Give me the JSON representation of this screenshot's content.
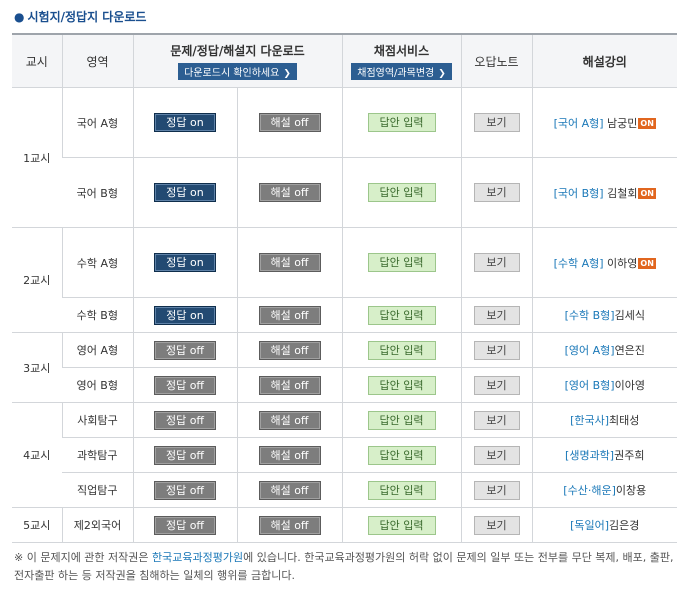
{
  "title": "시험지/정답지 다운로드",
  "headers": {
    "period": "교시",
    "area": "영역",
    "download": "문제/정답/해설지 다운로드",
    "download_sub": "다운로드시 확인하세요",
    "scoring": "채점서비스",
    "scoring_sub": "채점영역/과목변경",
    "wrong_note": "오답노트",
    "lecture": "해설강의"
  },
  "periods": [
    "1교시",
    "2교시",
    "3교시",
    "4교시",
    "5교시"
  ],
  "rows": [
    {
      "area": "국어 A형",
      "answer": "정답 on",
      "explain": "해설 off",
      "input": "답안 입력",
      "view": "보기",
      "lec_link": "[국어 A형]",
      "lec_name": " 남궁민",
      "badge": "ON"
    },
    {
      "area": "국어 B형",
      "answer": "정답 on",
      "explain": "해설 off",
      "input": "답안 입력",
      "view": "보기",
      "lec_link": "[국어 B형]",
      "lec_name": " 김철회",
      "badge": "ON"
    },
    {
      "area": "수학 A형",
      "answer": "정답 on",
      "explain": "해설 off",
      "input": "답안 입력",
      "view": "보기",
      "lec_link": "[수학 A형]",
      "lec_name": " 이하영",
      "badge": "ON"
    },
    {
      "area": "수학 B형",
      "answer": "정답 on",
      "explain": "해설 off",
      "input": "답안 입력",
      "view": "보기",
      "lec_link": "[수학 B형]",
      "lec_name": "김세식"
    },
    {
      "area": "영어 A형",
      "answer": "정답 off",
      "explain": "해설 off",
      "input": "답안 입력",
      "view": "보기",
      "lec_link": "[영어 A형]",
      "lec_name": "연은진"
    },
    {
      "area": "영어 B형",
      "answer": "정답 off",
      "explain": "해설 off",
      "input": "답안 입력",
      "view": "보기",
      "lec_link": "[영어 B형]",
      "lec_name": "이아영"
    },
    {
      "area": "사회탐구",
      "answer": "정답 off",
      "explain": "해설 off",
      "input": "답안 입력",
      "view": "보기",
      "lec_link": "[한국사]",
      "lec_name": "최태성"
    },
    {
      "area": "과학탐구",
      "answer": "정답 off",
      "explain": "해설 off",
      "input": "답안 입력",
      "view": "보기",
      "lec_link": "[생명과학]",
      "lec_name": "권주희"
    },
    {
      "area": "직업탐구",
      "answer": "정답 off",
      "explain": "해설 off",
      "input": "답안 입력",
      "view": "보기",
      "lec_link": "[수산·해운]",
      "lec_name": "이창용"
    },
    {
      "area": "제2외국어",
      "answer": "정답 off",
      "explain": "해설 off",
      "input": "답안 입력",
      "view": "보기",
      "lec_link": "[독일어]",
      "lec_name": "김은경"
    }
  ],
  "note": {
    "prefix": "※ 이 문제지에 관한 저작권은 ",
    "highlight": "한국교육과정평가원",
    "suffix": "에 있습니다. 한국교육과정평가원의 허락 없이 문제의 일부 또는 전부를 무단 복제, 배포, 출판, 전자출판 하는 등 저작권을 침해하는 일체의 행위를 금합니다."
  },
  "colors": {
    "accent": "#1a4f8f",
    "btn_on": "#234a72",
    "btn_off": "#7d7d7d",
    "btn_green": "#d7efc9",
    "link": "#1a78b8",
    "badge": "#e1661f"
  }
}
